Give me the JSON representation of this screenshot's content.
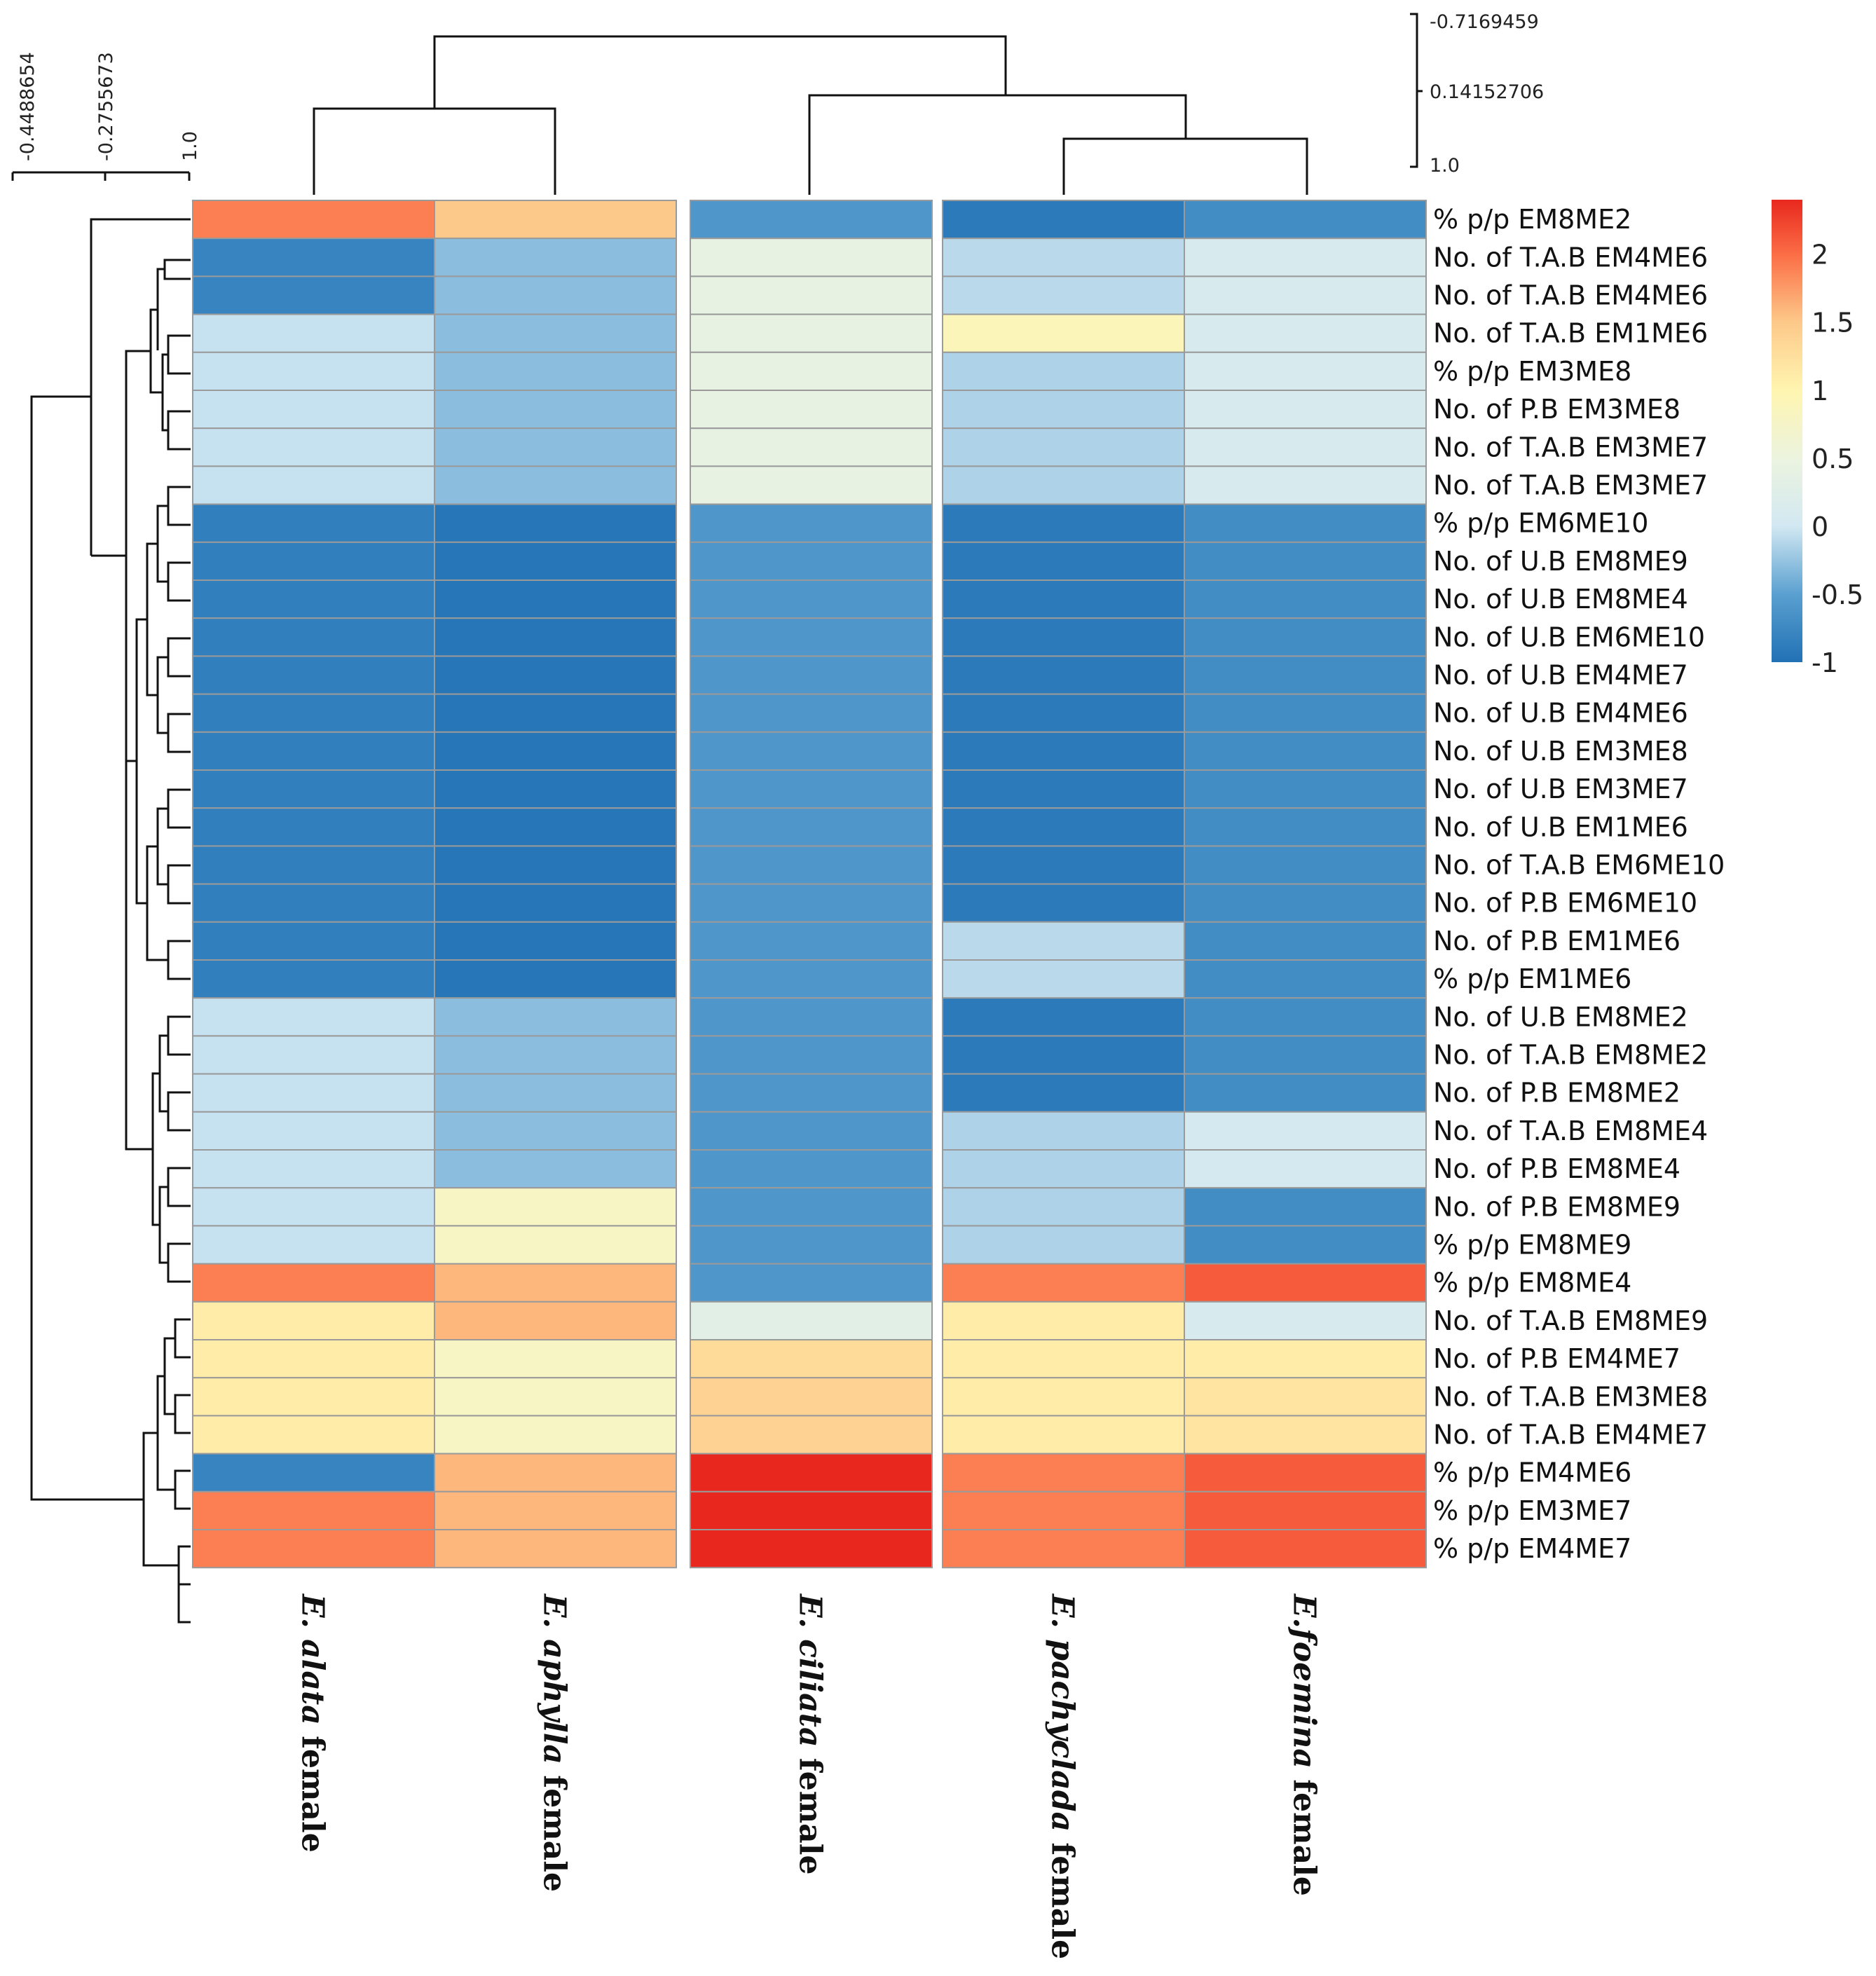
{
  "chart_data": {
    "type": "heatmap",
    "columns": [
      {
        "species": "E. alata",
        "suffix": " female"
      },
      {
        "species": "E. aphylla",
        "suffix": " female"
      },
      {
        "species": "E. ciliata",
        "suffix": " female"
      },
      {
        "species": "E. pachyclada",
        "suffix": " female"
      },
      {
        "species": "E.foemina",
        "suffix": " female"
      }
    ],
    "rows": [
      "% p/p EM8ME2",
      "No. of T.A.B EM4ME6",
      "No. of T.A.B EM4ME6",
      "No. of T.A.B EM1ME6",
      "% p/p EM3ME8",
      "No. of P.B EM3ME8",
      "No. of T.A.B EM3ME7",
      "No. of T.A.B EM3ME7",
      "% p/p EM6ME10",
      "No. of U.B EM8ME9",
      "No. of U.B EM8ME4",
      "No. of U.B EM6ME10",
      "No. of U.B EM4ME7",
      "No. of U.B EM4ME6",
      "No. of U.B EM3ME8",
      "No. of U.B EM3ME7",
      "No. of U.B EM1ME6",
      "No. of T.A.B EM6ME10",
      "No. of P.B EM6ME10",
      "No. of P.B EM1ME6",
      "% p/p EM1ME6",
      "No. of U.B EM8ME2",
      "No. of T.A.B EM8ME2",
      "No. of P.B EM8ME2",
      "No. of T.A.B EM8ME4",
      "No. of P.B EM8ME4",
      "No. of P.B EM8ME9",
      "% p/p EM8ME9",
      "% p/p EM8ME4",
      "No. of T.A.B EM8ME9",
      "No. of P.B EM4ME7",
      "No. of T.A.B EM3ME8",
      "No. of T.A.B EM4ME7",
      "% p/p EM4ME6",
      "% p/p EM3ME7",
      "% p/p EM4ME7"
    ],
    "values": [
      [
        1.9,
        1.5,
        -0.6,
        -0.9,
        -0.7
      ],
      [
        -0.8,
        -0.3,
        0.4,
        -0.1,
        0.1
      ],
      [
        -0.8,
        -0.3,
        0.4,
        -0.1,
        0.1
      ],
      [
        -0.05,
        -0.3,
        0.4,
        0.9,
        0.1
      ],
      [
        -0.05,
        -0.3,
        0.4,
        -0.15,
        0.1
      ],
      [
        -0.05,
        -0.3,
        0.4,
        -0.15,
        0.1
      ],
      [
        -0.05,
        -0.3,
        0.4,
        -0.15,
        0.1
      ],
      [
        -0.05,
        -0.3,
        0.4,
        -0.15,
        0.1
      ],
      [
        -0.85,
        -0.95,
        -0.6,
        -0.9,
        -0.7
      ],
      [
        -0.85,
        -0.95,
        -0.6,
        -0.9,
        -0.7
      ],
      [
        -0.85,
        -0.95,
        -0.6,
        -0.9,
        -0.7
      ],
      [
        -0.85,
        -0.95,
        -0.6,
        -0.9,
        -0.7
      ],
      [
        -0.85,
        -0.95,
        -0.6,
        -0.9,
        -0.7
      ],
      [
        -0.85,
        -0.95,
        -0.6,
        -0.9,
        -0.7
      ],
      [
        -0.85,
        -0.95,
        -0.6,
        -0.9,
        -0.7
      ],
      [
        -0.85,
        -0.95,
        -0.6,
        -0.9,
        -0.7
      ],
      [
        -0.85,
        -0.95,
        -0.6,
        -0.9,
        -0.7
      ],
      [
        -0.85,
        -0.95,
        -0.6,
        -0.9,
        -0.7
      ],
      [
        -0.85,
        -0.95,
        -0.6,
        -0.9,
        -0.7
      ],
      [
        -0.85,
        -0.95,
        -0.6,
        -0.1,
        -0.7
      ],
      [
        -0.85,
        -0.95,
        -0.6,
        -0.1,
        -0.7
      ],
      [
        -0.05,
        -0.3,
        -0.6,
        -0.9,
        -0.7
      ],
      [
        -0.05,
        -0.3,
        -0.6,
        -0.9,
        -0.7
      ],
      [
        -0.05,
        -0.3,
        -0.6,
        -0.9,
        -0.7
      ],
      [
        -0.05,
        -0.3,
        -0.6,
        -0.15,
        0.05
      ],
      [
        -0.05,
        -0.3,
        -0.6,
        -0.15,
        0.05
      ],
      [
        -0.05,
        0.8,
        -0.6,
        -0.15,
        -0.7
      ],
      [
        -0.05,
        0.8,
        -0.6,
        -0.15,
        -0.7
      ],
      [
        1.9,
        1.6,
        -0.6,
        1.9,
        2.1
      ],
      [
        1.1,
        1.6,
        0.3,
        1.1,
        0.1
      ],
      [
        1.1,
        0.8,
        1.3,
        1.1,
        1.1
      ],
      [
        1.1,
        0.8,
        1.4,
        1.1,
        1.2
      ],
      [
        1.1,
        0.8,
        1.4,
        1.1,
        1.2
      ],
      [
        -0.8,
        1.6,
        2.4,
        1.9,
        2.1
      ],
      [
        1.9,
        1.6,
        2.4,
        1.9,
        2.1
      ],
      [
        1.9,
        1.6,
        2.4,
        1.9,
        2.1
      ]
    ],
    "color_scale": {
      "min": -1,
      "max": 2.4,
      "stops": [
        {
          "value": -1,
          "color": "#2171b5"
        },
        {
          "value": -0.5,
          "color": "#5aa0d0"
        },
        {
          "value": 0,
          "color": "#d2e8f2"
        },
        {
          "value": 0.5,
          "color": "#ecf4df"
        },
        {
          "value": 1,
          "color": "#fff5b0"
        },
        {
          "value": 1.5,
          "color": "#fdc98a"
        },
        {
          "value": 2,
          "color": "#fb6d45"
        },
        {
          "value": 2.4,
          "color": "#e8281e"
        }
      ],
      "ticks": [
        "2",
        "1.5",
        "1",
        "0.5",
        "0",
        "-0.5",
        "-1"
      ]
    },
    "row_dendrogram_scale": [
      "-0.4488654",
      "-0.2755673",
      "1.0"
    ],
    "column_dendrogram_scale": [
      "-0.7169459",
      "0.14152706",
      "1.0"
    ],
    "column_clusters": [
      [
        0,
        1
      ],
      [
        2
      ],
      [
        3,
        4
      ]
    ]
  }
}
